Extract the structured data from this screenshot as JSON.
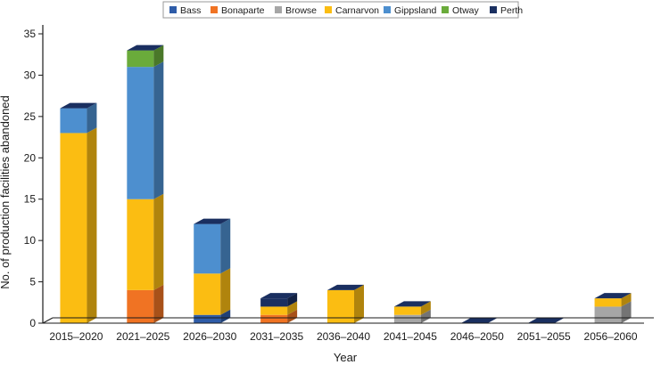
{
  "chart_data": {
    "type": "bar",
    "stacked": true,
    "style": "3d",
    "xlabel": "Year",
    "ylabel": "No. of production facilities abandoned",
    "ylim": [
      0,
      35
    ],
    "yticks": [
      0,
      5,
      10,
      15,
      20,
      25,
      30,
      35
    ],
    "grid": false,
    "legend_position": "top",
    "categories": [
      "2015–2020",
      "2021–2025",
      "2026–2030",
      "2031–2035",
      "2036–2040",
      "2041–2045",
      "2046–2050",
      "2051–2055",
      "2056–2060"
    ],
    "series": [
      {
        "name": "Bass",
        "color": "#2e5ca8",
        "values": [
          0,
          0,
          1,
          0,
          0,
          0,
          0,
          0,
          0
        ]
      },
      {
        "name": "Bonaparte",
        "color": "#f07323",
        "values": [
          0,
          4,
          0,
          1,
          0,
          0,
          0,
          0,
          0
        ]
      },
      {
        "name": "Browse",
        "color": "#a6a6a6",
        "values": [
          0,
          0,
          0,
          0,
          0,
          1,
          0,
          0,
          2
        ]
      },
      {
        "name": "Carnarvon",
        "color": "#fbbd12",
        "values": [
          23,
          11,
          5,
          1,
          4,
          1,
          0,
          0,
          1
        ]
      },
      {
        "name": "Gippsland",
        "color": "#4d8fcf",
        "values": [
          3,
          16,
          6,
          0,
          0,
          0,
          0,
          0,
          0
        ]
      },
      {
        "name": "Otway",
        "color": "#6aab3b",
        "values": [
          0,
          2,
          0,
          0,
          0,
          0,
          0,
          0,
          0
        ]
      },
      {
        "name": "Perth",
        "color": "#1a2f60",
        "values": [
          0,
          0,
          0,
          1,
          0,
          0,
          0,
          0,
          0
        ]
      }
    ]
  }
}
